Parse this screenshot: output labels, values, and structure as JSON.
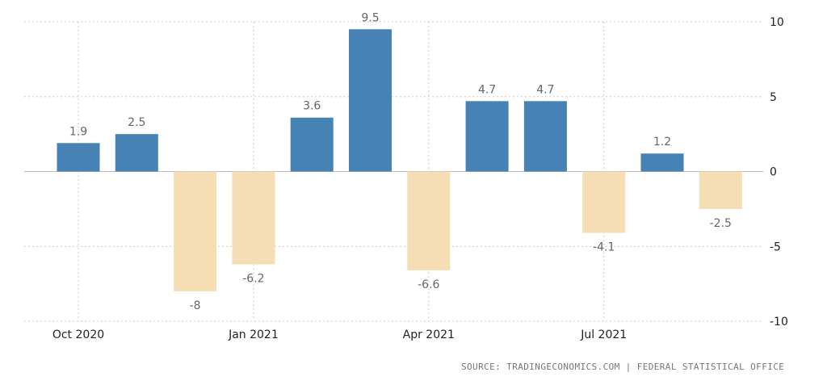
{
  "chart_data": {
    "type": "bar",
    "title": "",
    "xlabel": "",
    "ylabel": "",
    "ylim": [
      -10,
      10
    ],
    "yticks": [
      10,
      5,
      0,
      -5,
      -10
    ],
    "grid": true,
    "x": [
      "2020-10",
      "2020-11",
      "2020-12",
      "2021-01",
      "2021-02",
      "2021-03",
      "2021-04",
      "2021-05",
      "2021-06",
      "2021-07",
      "2021-08",
      "2021-09"
    ],
    "values": [
      1.9,
      2.5,
      -8,
      -6.2,
      3.6,
      9.5,
      -6.6,
      4.7,
      4.7,
      -4.1,
      1.2,
      -2.5
    ],
    "value_labels": [
      "1.9",
      "2.5",
      "-8",
      "-6.2",
      "3.6",
      "9.5",
      "-6.6",
      "4.7",
      "4.7",
      "-4.1",
      "1.2",
      "-2.5"
    ],
    "x_tick_labels": [
      {
        "label": "Oct 2020",
        "x": "2020-10"
      },
      {
        "label": "Jan 2021",
        "x": "2021-01"
      },
      {
        "label": "Apr 2021",
        "x": "2021-04"
      },
      {
        "label": "Jul 2021",
        "x": "2021-07"
      }
    ],
    "colors": {
      "positive": "#4682b4",
      "negative": "#f5deb3",
      "grid": "#cccccc",
      "zero_line": "#bbbbbb"
    }
  },
  "source_text": "SOURCE: TRADINGECONOMICS.COM | FEDERAL STATISTICAL OFFICE"
}
